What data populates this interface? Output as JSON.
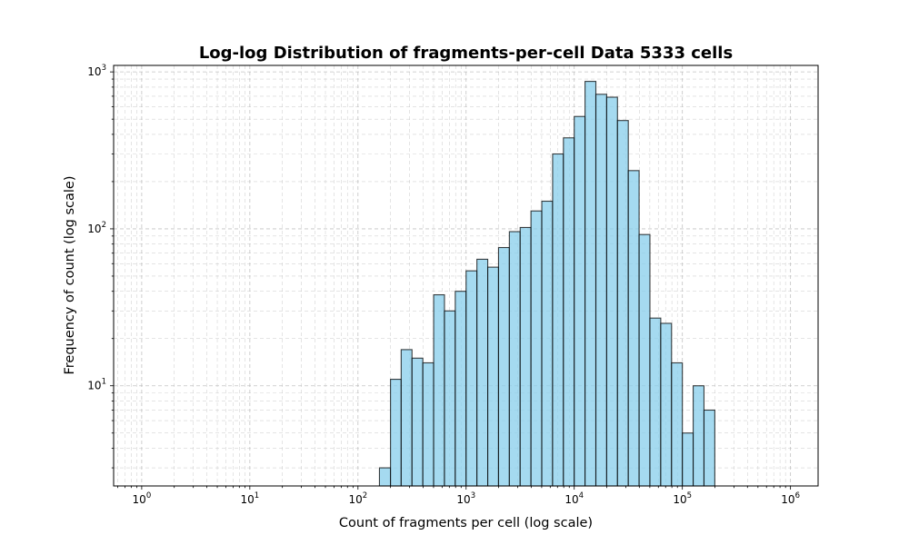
{
  "chart_data": {
    "type": "bar",
    "title": "Log-log Distribution of fragments-per-cell Data 5333 cells",
    "xlabel": "Count of fragments per cell (log scale)",
    "ylabel": "Frequency of count (log scale)",
    "x_scale": "log",
    "y_scale": "log",
    "xlim": [
      0.55,
      1800000
    ],
    "ylim": [
      2.3,
      1100
    ],
    "grid": true,
    "x_ticks": [
      {
        "base": "10",
        "exp": "0",
        "value": 1
      },
      {
        "base": "10",
        "exp": "1",
        "value": 10
      },
      {
        "base": "10",
        "exp": "2",
        "value": 100
      },
      {
        "base": "10",
        "exp": "3",
        "value": 1000
      },
      {
        "base": "10",
        "exp": "4",
        "value": 10000
      },
      {
        "base": "10",
        "exp": "5",
        "value": 100000
      },
      {
        "base": "10",
        "exp": "6",
        "value": 1000000
      }
    ],
    "y_ticks": [
      {
        "base": "10",
        "exp": "1",
        "value": 10
      },
      {
        "base": "10",
        "exp": "2",
        "value": 100
      },
      {
        "base": "10",
        "exp": "3",
        "value": 1000
      }
    ],
    "bar_color": "#87ceeb",
    "bar_edge_color": "#000000",
    "bins": [
      {
        "left": 158,
        "right": 200,
        "count": 3
      },
      {
        "left": 200,
        "right": 251,
        "count": 11
      },
      {
        "left": 251,
        "right": 316,
        "count": 17
      },
      {
        "left": 316,
        "right": 398,
        "count": 15
      },
      {
        "left": 398,
        "right": 501,
        "count": 14
      },
      {
        "left": 501,
        "right": 631,
        "count": 38
      },
      {
        "left": 631,
        "right": 794,
        "count": 30
      },
      {
        "left": 794,
        "right": 1000,
        "count": 40
      },
      {
        "left": 1000,
        "right": 1259,
        "count": 54
      },
      {
        "left": 1259,
        "right": 1585,
        "count": 64
      },
      {
        "left": 1585,
        "right": 1995,
        "count": 57
      },
      {
        "left": 1995,
        "right": 2512,
        "count": 76
      },
      {
        "left": 2512,
        "right": 3162,
        "count": 96
      },
      {
        "left": 3162,
        "right": 3981,
        "count": 102
      },
      {
        "left": 3981,
        "right": 5012,
        "count": 130
      },
      {
        "left": 5012,
        "right": 6310,
        "count": 150
      },
      {
        "left": 6310,
        "right": 7943,
        "count": 300
      },
      {
        "left": 7943,
        "right": 10000,
        "count": 380
      },
      {
        "left": 10000,
        "right": 12589,
        "count": 520
      },
      {
        "left": 12589,
        "right": 15849,
        "count": 870
      },
      {
        "left": 15849,
        "right": 19953,
        "count": 720
      },
      {
        "left": 19953,
        "right": 25119,
        "count": 690
      },
      {
        "left": 25119,
        "right": 31623,
        "count": 490
      },
      {
        "left": 31623,
        "right": 39811,
        "count": 235
      },
      {
        "left": 39811,
        "right": 50119,
        "count": 92
      },
      {
        "left": 50119,
        "right": 63096,
        "count": 27
      },
      {
        "left": 63096,
        "right": 79433,
        "count": 25
      },
      {
        "left": 79433,
        "right": 100000,
        "count": 14
      },
      {
        "left": 100000,
        "right": 125893,
        "count": 5
      },
      {
        "left": 125893,
        "right": 158489,
        "count": 10
      },
      {
        "left": 158489,
        "right": 199526,
        "count": 7
      }
    ]
  }
}
